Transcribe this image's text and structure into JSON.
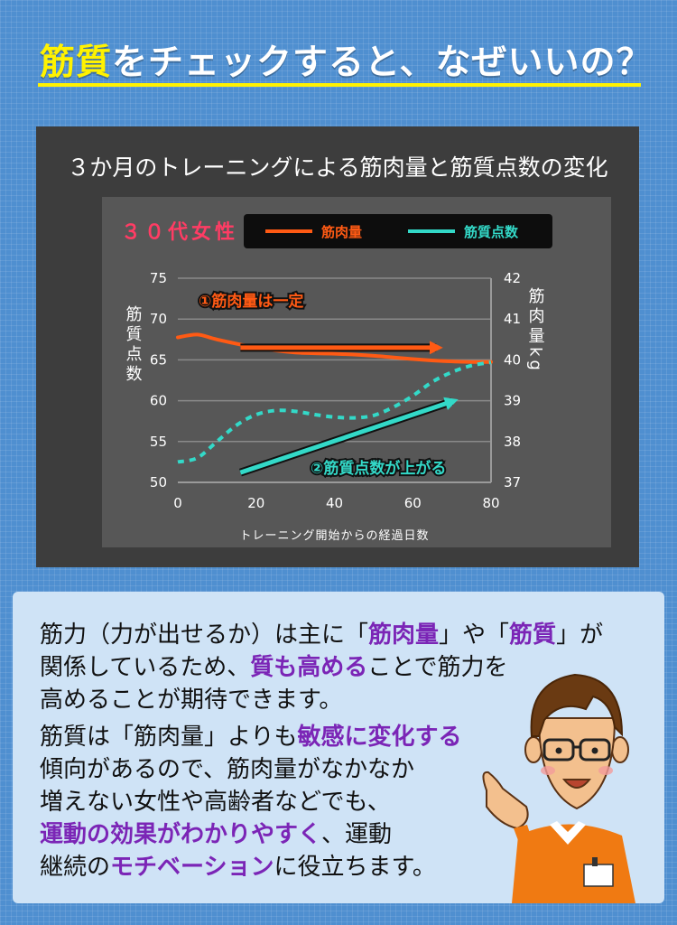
{
  "header": {
    "title_highlight": "筋質",
    "title_rest": "をチェックすると、なぜいいの？"
  },
  "chart_data": {
    "type": "line",
    "title": "３か月のトレーニングによる筋肉量と筋質点数の変化",
    "tag": "３０代女性",
    "xlabel": "トレーニング開始からの経過日数",
    "ylabel_left": "筋質点数",
    "ylabel_right": "筋肉量kg",
    "xlim": [
      0,
      80
    ],
    "xticks": [
      "0",
      "20",
      "40",
      "60",
      "80"
    ],
    "ylim_left": [
      50,
      75
    ],
    "yticks_left": [
      "50",
      "55",
      "60",
      "65",
      "70",
      "75"
    ],
    "ylim_right": [
      37,
      42
    ],
    "yticks_right": [
      "37",
      "38",
      "39",
      "40",
      "41",
      "42"
    ],
    "grid": true,
    "legend_position": "top",
    "series": [
      {
        "name": "筋肉量",
        "axis": "right",
        "color": "#ff5a14",
        "style": "solid",
        "x": [
          0,
          5,
          10,
          20,
          30,
          40,
          50,
          60,
          68,
          75,
          80
        ],
        "y": [
          40.55,
          40.62,
          40.5,
          40.3,
          40.18,
          40.15,
          40.1,
          40.02,
          39.97,
          39.95,
          39.95
        ]
      },
      {
        "name": "筋質点数",
        "axis": "left",
        "color": "#33d9c8",
        "style": "dashed",
        "x": [
          0,
          5,
          10,
          15,
          20,
          25,
          30,
          35,
          40,
          45,
          50,
          55,
          60,
          65,
          70,
          75,
          80
        ],
        "y": [
          52.5,
          53.0,
          55.0,
          57.0,
          58.3,
          58.8,
          58.7,
          58.3,
          58.0,
          57.9,
          58.2,
          59.2,
          60.6,
          62.3,
          63.5,
          64.3,
          64.7
        ]
      }
    ],
    "annotations": [
      {
        "label": "①筋肉量は一定",
        "arrow_color": "#ff5a14",
        "arrow_from": [
          16,
          66.5
        ],
        "arrow_to": [
          66,
          66.5
        ]
      },
      {
        "label": "②筋質点数が上がる",
        "arrow_color": "#33d9c8",
        "arrow_from": [
          16,
          51.2
        ],
        "arrow_to": [
          70,
          59.9
        ]
      }
    ]
  },
  "body": {
    "p1": [
      [
        {
          "t": "筋力（力が出せるか）は主に「"
        },
        {
          "t": "筋肉量",
          "em": true
        },
        {
          "t": "」や「"
        },
        {
          "t": "筋質",
          "em": true
        },
        {
          "t": "」が"
        }
      ],
      [
        {
          "t": "関係しているため、"
        },
        {
          "t": "質も高める",
          "em": true
        },
        {
          "t": "ことで筋力を"
        }
      ],
      [
        {
          "t": "高めることが期待できます。"
        }
      ]
    ],
    "p2": [
      [
        {
          "t": "筋質は「筋肉量」よりも"
        },
        {
          "t": "敏感に変化する",
          "em": true
        }
      ],
      [
        {
          "t": "傾向があるので、筋肉量がなかなか"
        }
      ],
      [
        {
          "t": "増えない女性や高齢者などでも、"
        }
      ],
      [
        {
          "t": "運動の効果がわかりやすく",
          "em": true
        },
        {
          "t": "、運動"
        }
      ],
      [
        {
          "t": "継続の"
        },
        {
          "t": "モチベーション",
          "em": true
        },
        {
          "t": "に役立ちます。"
        }
      ]
    ]
  }
}
